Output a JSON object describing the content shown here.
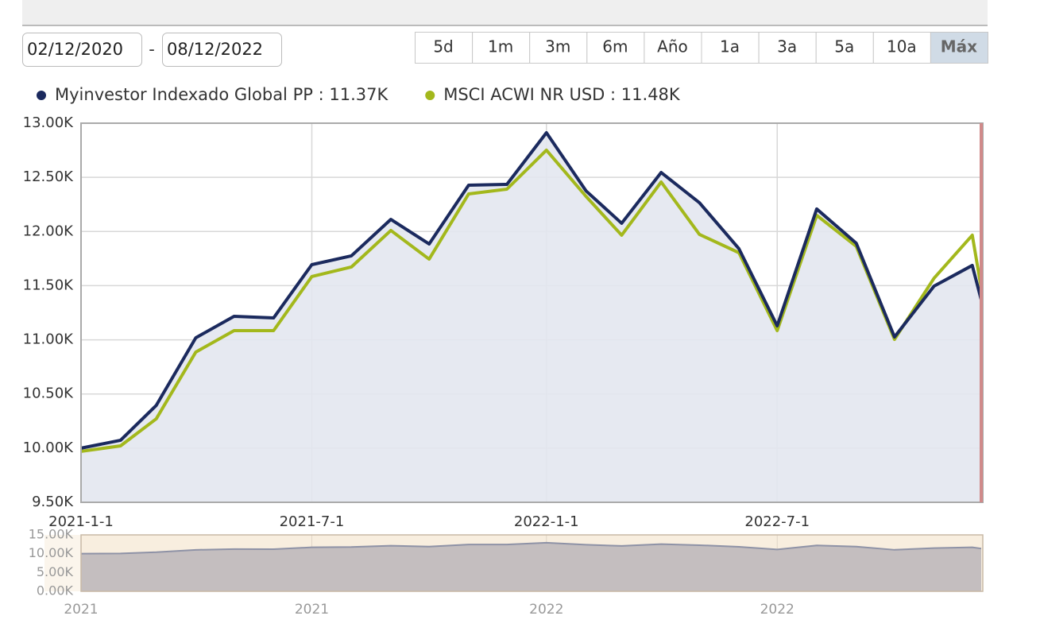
{
  "controls": {
    "date_from": "02/12/2020",
    "separator": "-",
    "date_to": "08/12/2022",
    "ranges": [
      "5d",
      "1m",
      "3m",
      "6m",
      "Año",
      "1a",
      "3a",
      "5a",
      "10a",
      "Máx"
    ],
    "active_range": 9
  },
  "chart_data": {
    "type": "line",
    "area": true,
    "grid": true,
    "legend_separator": " : ",
    "x": [
      "2021-1-1",
      "2021-2-1",
      "2021-3-1",
      "2021-4-1",
      "2021-5-1",
      "2021-6-1",
      "2021-7-1",
      "2021-8-1",
      "2021-9-1",
      "2021-10-1",
      "2021-11-1",
      "2021-12-1",
      "2022-1-1",
      "2022-2-1",
      "2022-3-1",
      "2022-4-1",
      "2022-5-1",
      "2022-6-1",
      "2022-7-1",
      "2022-8-1",
      "2022-9-1",
      "2022-10-1",
      "2022-11-1",
      "2022-12-1",
      "2022-12-8"
    ],
    "xlim": [
      "2021-1-1",
      "2022-12-8"
    ],
    "xticks": [
      "2021-1-1",
      "2021-7-1",
      "2022-1-1",
      "2022-7-1"
    ],
    "ylim": [
      9500,
      13000
    ],
    "yticks": [
      {
        "value": 9500,
        "label": "9.50K"
      },
      {
        "value": 10000,
        "label": "10.00K"
      },
      {
        "value": 10500,
        "label": "10.50K"
      },
      {
        "value": 11000,
        "label": "11.00K"
      },
      {
        "value": 11500,
        "label": "11.50K"
      },
      {
        "value": 12000,
        "label": "12.00K"
      },
      {
        "value": 12500,
        "label": "12.50K"
      },
      {
        "value": 13000,
        "label": "13.00K"
      }
    ],
    "series": [
      {
        "name": "Myinvestor Indexado Global PP",
        "legend_value": "11.37K",
        "color": "#1b2a5e",
        "values": [
          10000,
          10073,
          10395,
          11019,
          11217,
          11202,
          11694,
          11775,
          12112,
          11885,
          12428,
          12435,
          12912,
          12376,
          12076,
          12545,
          12266,
          11841,
          11129,
          12208,
          11892,
          11026,
          11496,
          11687,
          11370
        ]
      },
      {
        "name": "MSCI ACWI NR USD",
        "legend_value": "11.48K",
        "color": "#a3b81c",
        "values": [
          9970,
          10021,
          10271,
          10887,
          11085,
          11085,
          11584,
          11672,
          12010,
          11745,
          12347,
          12391,
          12751,
          12325,
          11966,
          12457,
          11973,
          11804,
          11085,
          12149,
          11863,
          11004,
          11569,
          11966,
          11480
        ]
      }
    ]
  },
  "navigator": {
    "ylim": [
      0,
      15000
    ],
    "yticks": [
      {
        "value": 0,
        "label": "0.00K"
      },
      {
        "value": 5000,
        "label": "5.00K"
      },
      {
        "value": 10000,
        "label": "10.00K"
      },
      {
        "value": 15000,
        "label": "15.00K"
      }
    ],
    "xticks": [
      {
        "value": "2021-1-1",
        "label": "2021"
      },
      {
        "value": "2021-7-1",
        "label": "2021"
      },
      {
        "value": "2022-1-1",
        "label": "2022"
      },
      {
        "value": "2022-7-1",
        "label": "2022"
      }
    ]
  }
}
